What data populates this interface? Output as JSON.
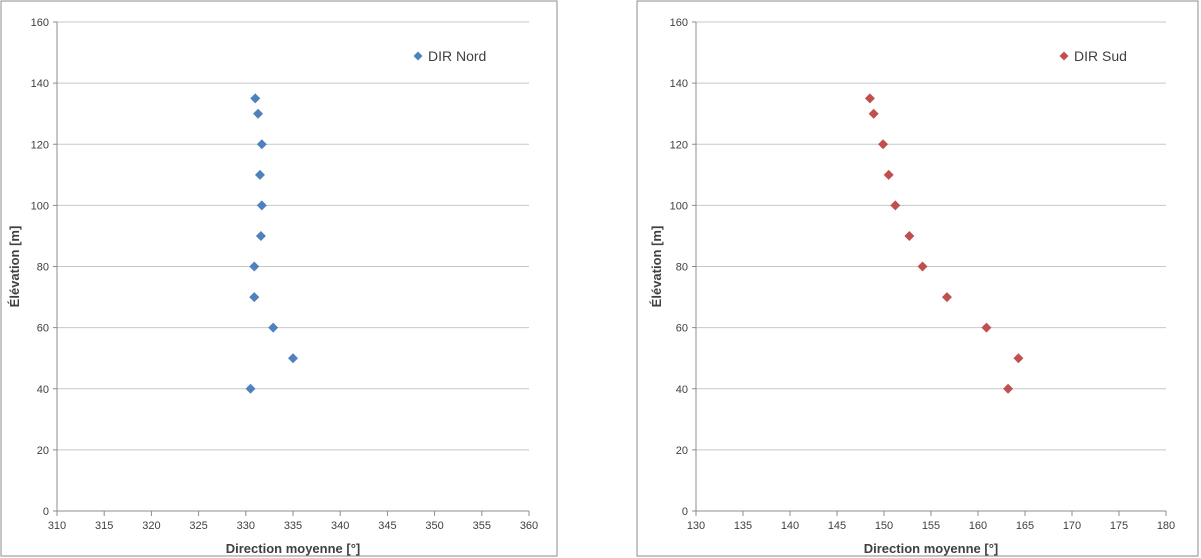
{
  "chart_data": [
    {
      "type": "scatter",
      "title": "",
      "xlabel": "Direction moyenne [°]",
      "ylabel": "Élévation [m]",
      "xlim": [
        310,
        360
      ],
      "ylim": [
        0,
        160
      ],
      "xticks": [
        310,
        315,
        320,
        325,
        330,
        335,
        340,
        345,
        350,
        355,
        360
      ],
      "yticks": [
        0,
        20,
        40,
        60,
        80,
        100,
        120,
        140,
        160
      ],
      "grid": "horizontal",
      "legend": "top-right",
      "series": [
        {
          "name": "DIR Nord",
          "color": "#4f81bd",
          "marker": "diamond",
          "x": [
            330.5,
            335.0,
            332.9,
            330.9,
            330.9,
            331.6,
            331.7,
            331.5,
            331.7,
            331.3,
            331.0
          ],
          "y": [
            40,
            50,
            60,
            70,
            80,
            90,
            100,
            110,
            120,
            130,
            135
          ]
        }
      ]
    },
    {
      "type": "scatter",
      "title": "",
      "xlabel": "Direction moyenne [°]",
      "ylabel": "Élévation [m]",
      "xlim": [
        130,
        180
      ],
      "ylim": [
        0,
        160
      ],
      "xticks": [
        130,
        135,
        140,
        145,
        150,
        155,
        160,
        165,
        170,
        175,
        180
      ],
      "yticks": [
        0,
        20,
        40,
        60,
        80,
        100,
        120,
        140,
        160
      ],
      "grid": "horizontal",
      "legend": "top-right",
      "series": [
        {
          "name": "DIR Sud",
          "color": "#c0504d",
          "marker": "diamond",
          "x": [
            163.2,
            164.3,
            160.9,
            156.7,
            154.1,
            152.7,
            151.2,
            150.5,
            149.9,
            148.9,
            148.5
          ],
          "y": [
            40,
            50,
            60,
            70,
            80,
            90,
            100,
            110,
            120,
            130,
            135
          ]
        }
      ]
    }
  ]
}
